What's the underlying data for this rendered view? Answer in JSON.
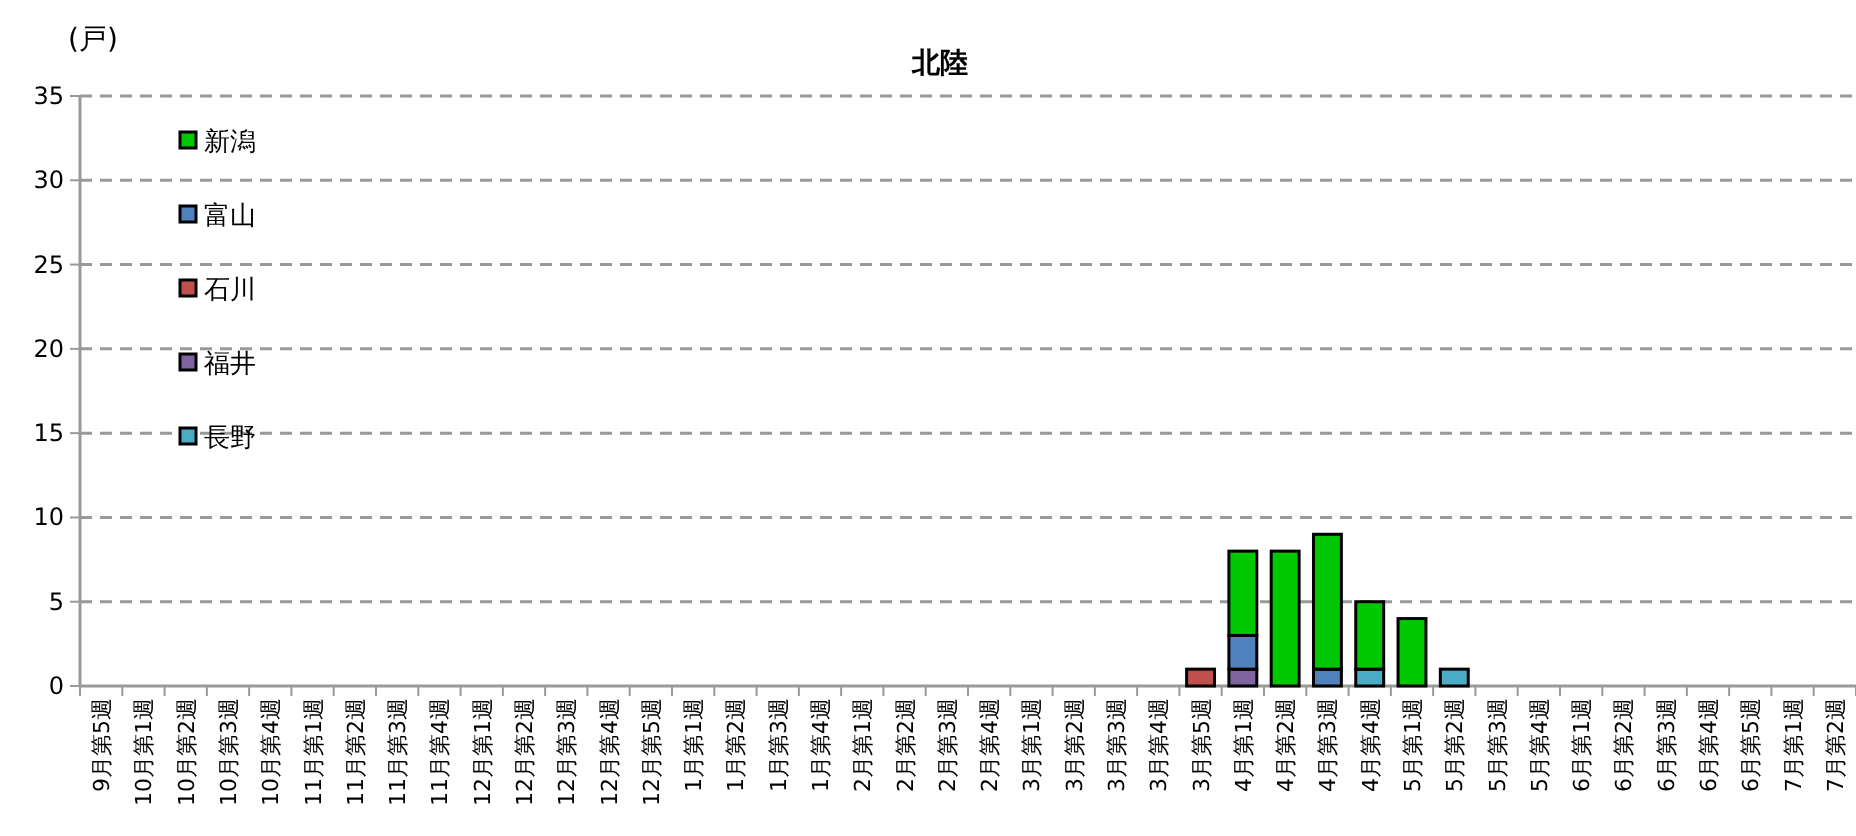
{
  "chart_data": {
    "type": "bar",
    "title": "北陸",
    "ylabel": "(戸)",
    "stacked": true,
    "grid": "y",
    "legend": "top left",
    "ylim": [
      0,
      35
    ],
    "yticks": [
      0,
      5,
      10,
      15,
      20,
      25,
      30,
      35
    ],
    "categories": [
      "9月第5週",
      "10月第1週",
      "10月第2週",
      "10月第3週",
      "10月第4週",
      "11月第1週",
      "11月第2週",
      "11月第3週",
      "11月第4週",
      "12月第1週",
      "12月第2週",
      "12月第3週",
      "12月第4週",
      "12月第5週",
      "1月第1週",
      "1月第2週",
      "1月第3週",
      "1月第4週",
      "2月第1週",
      "2月第2週",
      "2月第3週",
      "2月第4週",
      "3月第1週",
      "3月第2週",
      "3月第3週",
      "3月第4週",
      "3月第5週",
      "4月第1週",
      "4月第2週",
      "4月第3週",
      "4月第4週",
      "5月第1週",
      "5月第2週",
      "5月第3週",
      "5月第4週",
      "6月第1週",
      "6月第2週",
      "6月第3週",
      "6月第4週",
      "6月第5週",
      "7月第1週",
      "7月第2週"
    ],
    "series": [
      {
        "name": "長野",
        "color": "#4bacc6",
        "values": [
          0,
          0,
          0,
          0,
          0,
          0,
          0,
          0,
          0,
          0,
          0,
          0,
          0,
          0,
          0,
          0,
          0,
          0,
          0,
          0,
          0,
          0,
          0,
          0,
          0,
          0,
          0,
          0,
          0,
          0,
          1,
          0,
          1,
          0,
          0,
          0,
          0,
          0,
          0,
          0,
          0,
          0
        ]
      },
      {
        "name": "福井",
        "color": "#8064a2",
        "values": [
          0,
          0,
          0,
          0,
          0,
          0,
          0,
          0,
          0,
          0,
          0,
          0,
          0,
          0,
          0,
          0,
          0,
          0,
          0,
          0,
          0,
          0,
          0,
          0,
          0,
          0,
          0,
          1,
          0,
          0,
          0,
          0,
          0,
          0,
          0,
          0,
          0,
          0,
          0,
          0,
          0,
          0
        ]
      },
      {
        "name": "石川",
        "color": "#c0504d",
        "values": [
          0,
          0,
          0,
          0,
          0,
          0,
          0,
          0,
          0,
          0,
          0,
          0,
          0,
          0,
          0,
          0,
          0,
          0,
          0,
          0,
          0,
          0,
          0,
          0,
          0,
          0,
          1,
          0,
          0,
          0,
          0,
          0,
          0,
          0,
          0,
          0,
          0,
          0,
          0,
          0,
          0,
          0
        ]
      },
      {
        "name": "富山",
        "color": "#4f81bd",
        "values": [
          0,
          0,
          0,
          0,
          0,
          0,
          0,
          0,
          0,
          0,
          0,
          0,
          0,
          0,
          0,
          0,
          0,
          0,
          0,
          0,
          0,
          0,
          0,
          0,
          0,
          0,
          0,
          2,
          0,
          1,
          0,
          0,
          0,
          0,
          0,
          0,
          0,
          0,
          0,
          0,
          0,
          0
        ]
      },
      {
        "name": "新潟",
        "color": "#00c800",
        "values": [
          0,
          0,
          0,
          0,
          0,
          0,
          0,
          0,
          0,
          0,
          0,
          0,
          0,
          0,
          0,
          0,
          0,
          0,
          0,
          0,
          0,
          0,
          0,
          0,
          0,
          0,
          0,
          5,
          8,
          8,
          4,
          4,
          0,
          0,
          0,
          0,
          0,
          0,
          0,
          0,
          0,
          0
        ]
      }
    ]
  }
}
